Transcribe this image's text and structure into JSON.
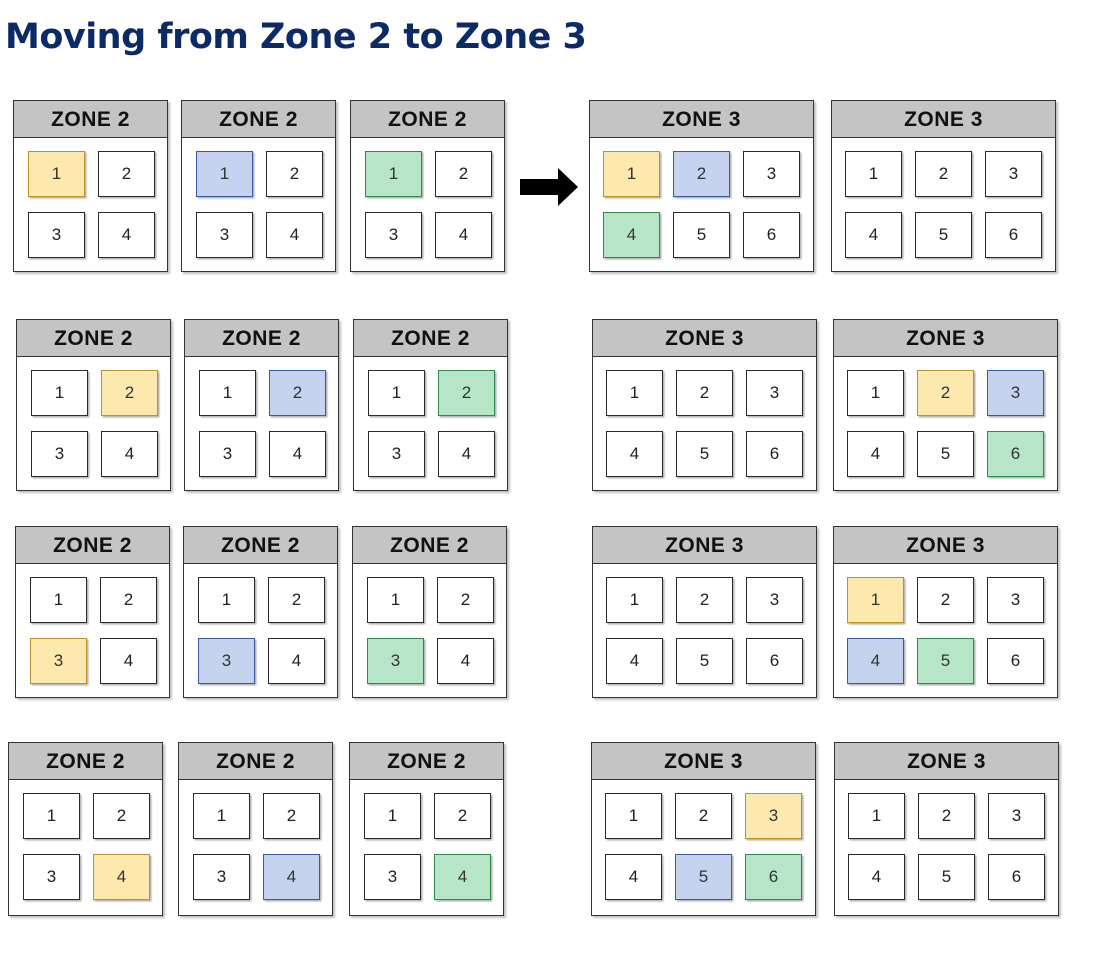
{
  "title": "Moving from Zone 2 to Zone 3",
  "colors": {
    "yellow": "#fde9ad",
    "blue": "#c5d3ee",
    "green": "#b6e5c8",
    "yellow_border": "#b8922a",
    "blue_border": "#3a5aa0",
    "green_border": "#2e8a4e",
    "header_gray": "#c4c4c4",
    "title_color": "#0b2a66"
  },
  "arrow_icon": "right-arrow-icon",
  "rows": [
    {
      "zone2": [
        {
          "label": "ZONE 2",
          "cells": [
            "1",
            "2",
            "3",
            "4"
          ],
          "highlights": {
            "1": "yellow"
          }
        },
        {
          "label": "ZONE 2",
          "cells": [
            "1",
            "2",
            "3",
            "4"
          ],
          "highlights": {
            "1": "blue"
          }
        },
        {
          "label": "ZONE 2",
          "cells": [
            "1",
            "2",
            "3",
            "4"
          ],
          "highlights": {
            "1": "green"
          }
        }
      ],
      "zone3": [
        {
          "label": "ZONE 3",
          "cells": [
            "1",
            "2",
            "3",
            "4",
            "5",
            "6"
          ],
          "highlights": {
            "1": "yellow",
            "2": "blue",
            "4": "green"
          }
        },
        {
          "label": "ZONE 3",
          "cells": [
            "1",
            "2",
            "3",
            "4",
            "5",
            "6"
          ],
          "highlights": {}
        }
      ]
    },
    {
      "zone2": [
        {
          "label": "ZONE 2",
          "cells": [
            "1",
            "2",
            "3",
            "4"
          ],
          "highlights": {
            "2": "yellow"
          }
        },
        {
          "label": "ZONE 2",
          "cells": [
            "1",
            "2",
            "3",
            "4"
          ],
          "highlights": {
            "2": "blue"
          }
        },
        {
          "label": "ZONE 2",
          "cells": [
            "1",
            "2",
            "3",
            "4"
          ],
          "highlights": {
            "2": "green"
          }
        }
      ],
      "zone3": [
        {
          "label": "ZONE 3",
          "cells": [
            "1",
            "2",
            "3",
            "4",
            "5",
            "6"
          ],
          "highlights": {}
        },
        {
          "label": "ZONE 3",
          "cells": [
            "1",
            "2",
            "3",
            "4",
            "5",
            "6"
          ],
          "highlights": {
            "2": "yellow",
            "3": "blue",
            "6": "green"
          }
        }
      ]
    },
    {
      "zone2": [
        {
          "label": "ZONE 2",
          "cells": [
            "1",
            "2",
            "3",
            "4"
          ],
          "highlights": {
            "3": "yellow"
          }
        },
        {
          "label": "ZONE 2",
          "cells": [
            "1",
            "2",
            "3",
            "4"
          ],
          "highlights": {
            "3": "blue"
          }
        },
        {
          "label": "ZONE 2",
          "cells": [
            "1",
            "2",
            "3",
            "4"
          ],
          "highlights": {
            "3": "green"
          }
        }
      ],
      "zone3": [
        {
          "label": "ZONE 3",
          "cells": [
            "1",
            "2",
            "3",
            "4",
            "5",
            "6"
          ],
          "highlights": {}
        },
        {
          "label": "ZONE 3",
          "cells": [
            "1",
            "2",
            "3",
            "4",
            "5",
            "6"
          ],
          "highlights": {
            "1": "yellow",
            "4": "blue",
            "5": "green"
          }
        }
      ]
    },
    {
      "zone2": [
        {
          "label": "ZONE 2",
          "cells": [
            "1",
            "2",
            "3",
            "4"
          ],
          "highlights": {
            "4": "yellow"
          }
        },
        {
          "label": "ZONE 2",
          "cells": [
            "1",
            "2",
            "3",
            "4"
          ],
          "highlights": {
            "4": "blue"
          }
        },
        {
          "label": "ZONE 2",
          "cells": [
            "1",
            "2",
            "3",
            "4"
          ],
          "highlights": {
            "4": "green"
          }
        }
      ],
      "zone3": [
        {
          "label": "ZONE 3",
          "cells": [
            "1",
            "2",
            "3",
            "4",
            "5",
            "6"
          ],
          "highlights": {
            "3": "yellow",
            "5": "blue",
            "6": "green"
          }
        },
        {
          "label": "ZONE 3",
          "cells": [
            "1",
            "2",
            "3",
            "4",
            "5",
            "6"
          ],
          "highlights": {}
        }
      ]
    }
  ]
}
